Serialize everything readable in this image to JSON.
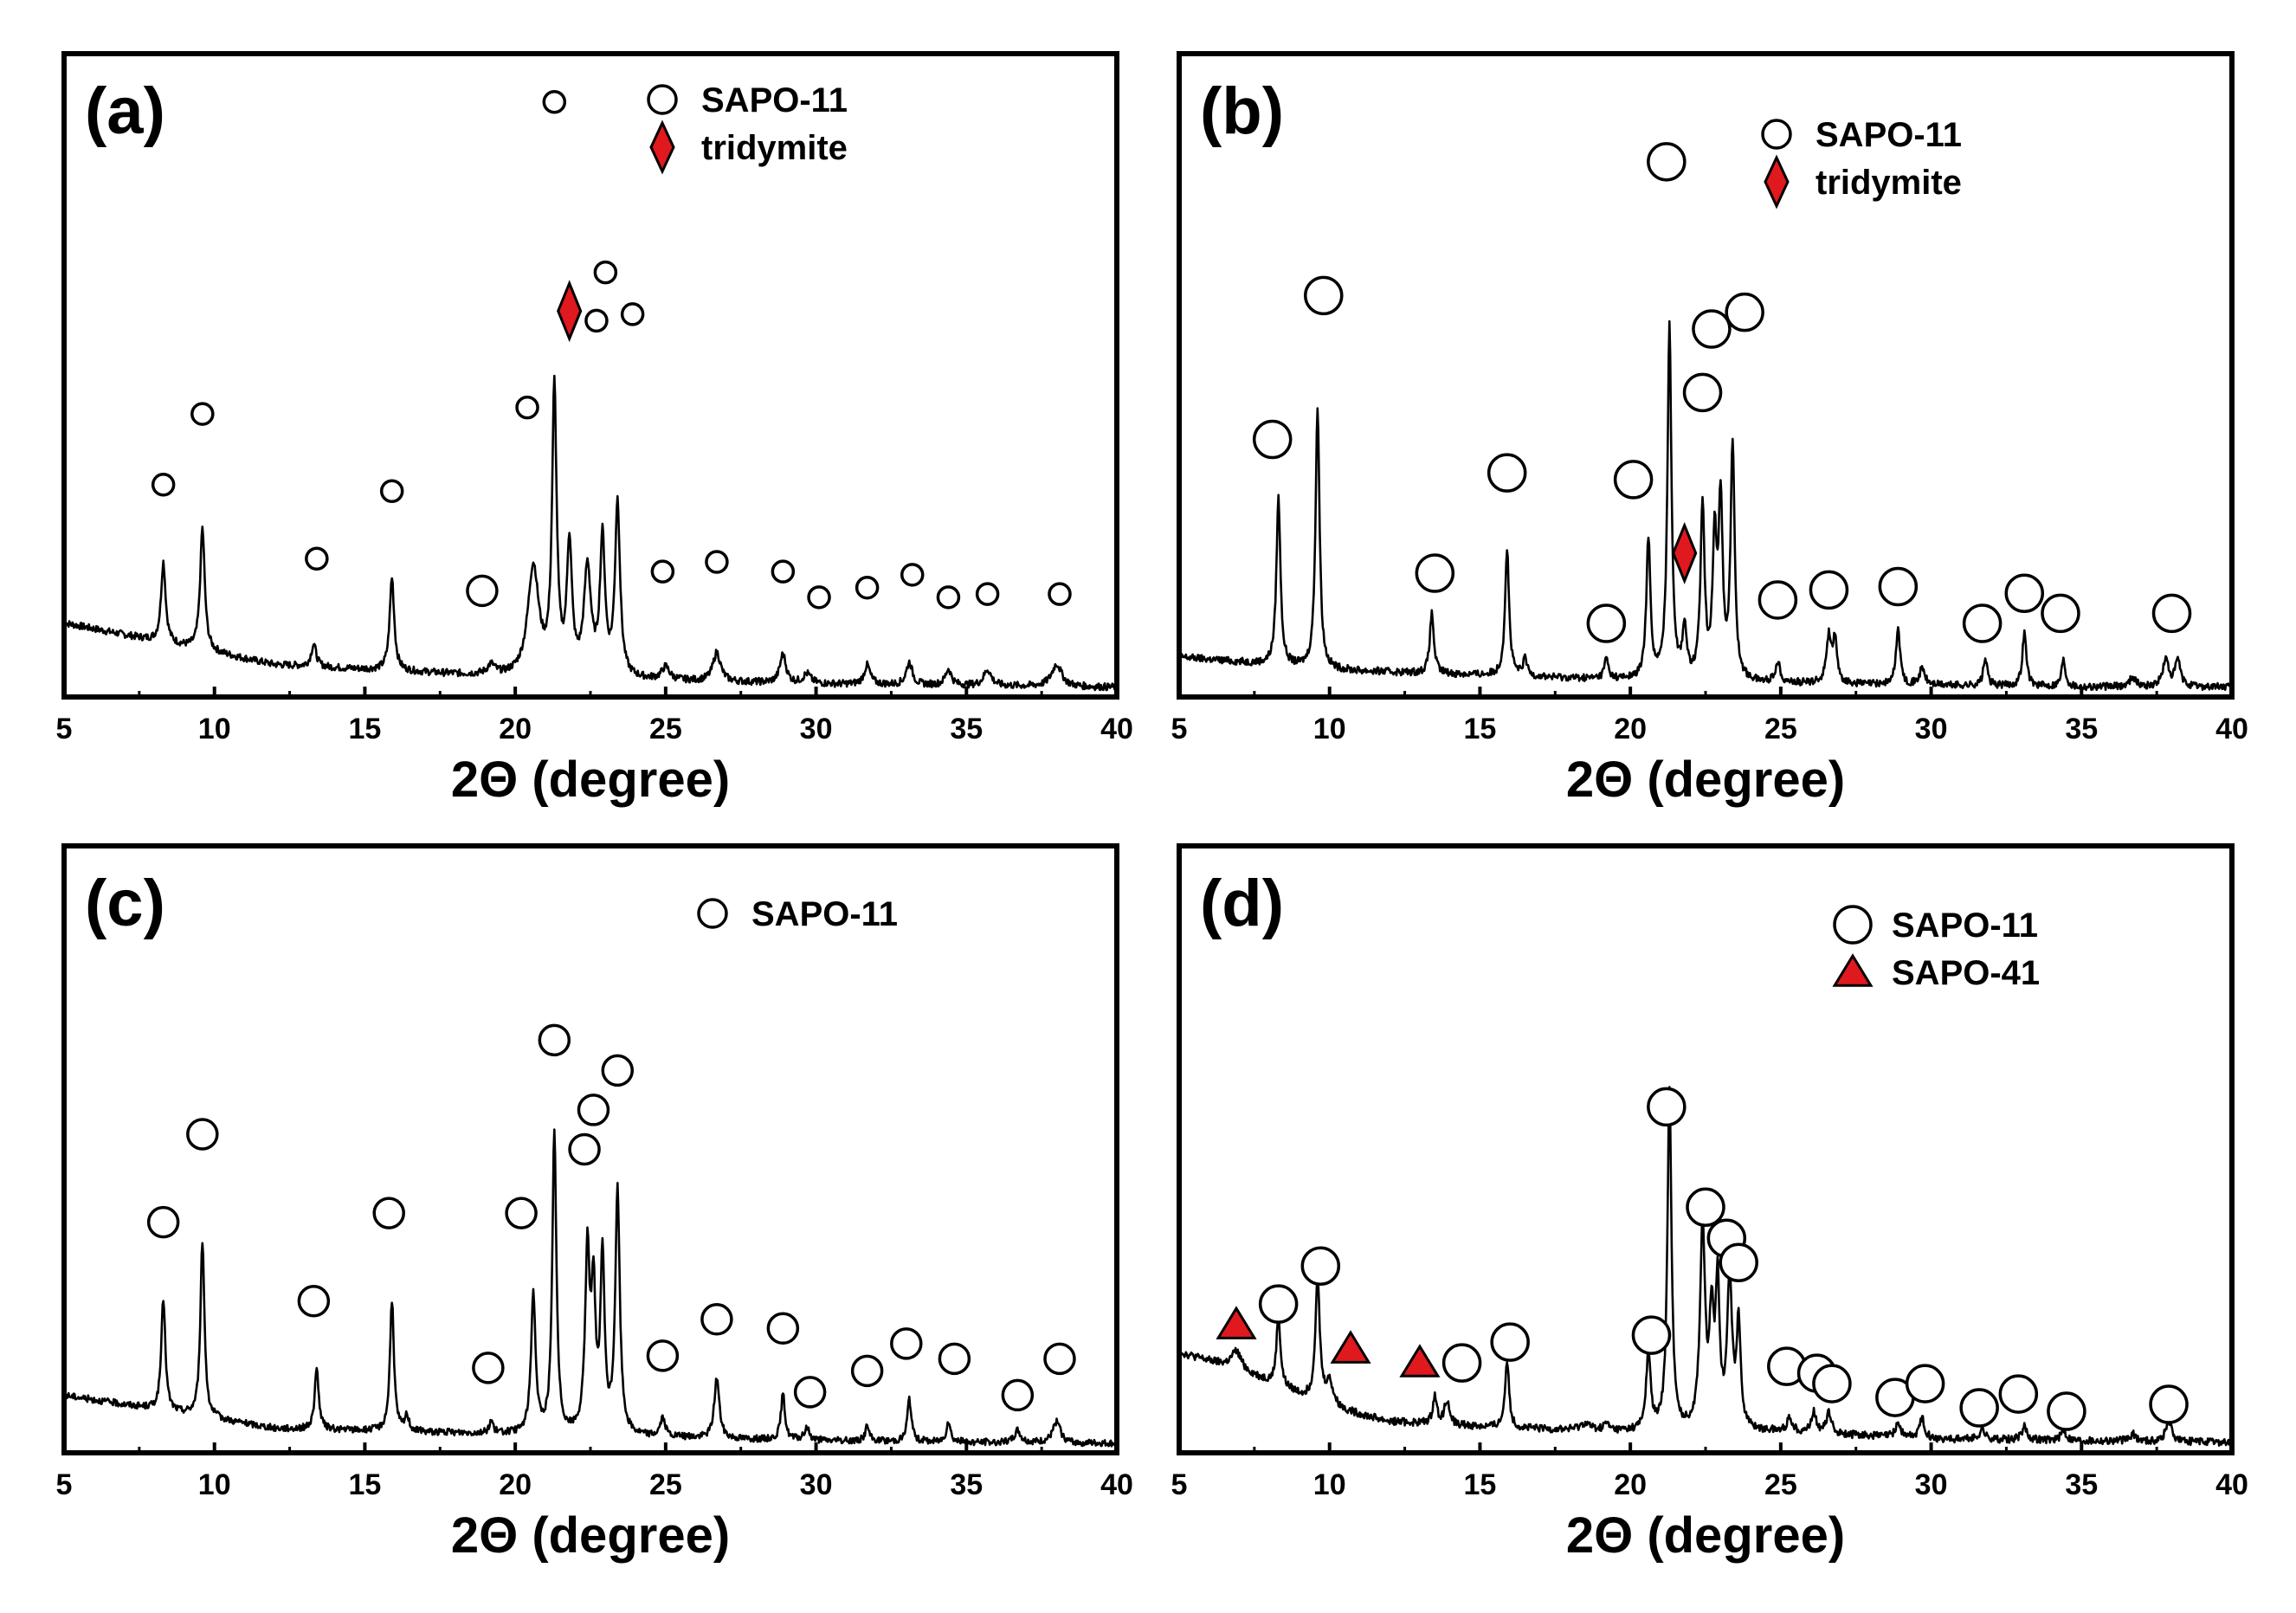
{
  "chart_data": [
    {
      "type": "line",
      "panel_label": "(a)",
      "xlabel": "2Θ (degree)",
      "ylabel": "",
      "xlim": [
        5,
        40
      ],
      "x_ticks": [
        "5",
        "10",
        "15",
        "20",
        "25",
        "30",
        "35",
        "40"
      ],
      "legend": [
        {
          "label": "SAPO-11",
          "marker": "circle"
        },
        {
          "label": "tridymite",
          "marker": "diamond",
          "color": "#e0191f"
        }
      ],
      "baseline": {
        "x": [
          5,
          12,
          20,
          25,
          30,
          35,
          40
        ],
        "y": [
          0.23,
          0.1,
          0.06,
          0.05,
          0.04,
          0.035,
          0.03
        ]
      },
      "peaks": [
        {
          "x": 8.3,
          "y": 0.25,
          "w": 0.09
        },
        {
          "x": 9.6,
          "y": 0.38,
          "w": 0.09
        },
        {
          "x": 13.3,
          "y": 0.07,
          "w": 0.1
        },
        {
          "x": 15.9,
          "y": 0.29,
          "w": 0.09
        },
        {
          "x": 19.2,
          "y": 0.03,
          "w": 0.15
        },
        {
          "x": 20.6,
          "y": 0.34,
          "w": 0.22
        },
        {
          "x": 21.3,
          "y": 0.88,
          "w": 0.09
        },
        {
          "x": 21.8,
          "y": 0.4,
          "w": 0.1
        },
        {
          "x": 22.4,
          "y": 0.33,
          "w": 0.14
        },
        {
          "x": 22.9,
          "y": 0.42,
          "w": 0.1
        },
        {
          "x": 23.4,
          "y": 0.54,
          "w": 0.1
        },
        {
          "x": 25.0,
          "y": 0.04,
          "w": 0.15
        },
        {
          "x": 26.7,
          "y": 0.09,
          "w": 0.15
        },
        {
          "x": 28.9,
          "y": 0.09,
          "w": 0.12
        },
        {
          "x": 29.7,
          "y": 0.03,
          "w": 0.15
        },
        {
          "x": 31.7,
          "y": 0.06,
          "w": 0.12
        },
        {
          "x": 33.1,
          "y": 0.07,
          "w": 0.12
        },
        {
          "x": 34.4,
          "y": 0.05,
          "w": 0.12
        },
        {
          "x": 35.7,
          "y": 0.05,
          "w": 0.15
        },
        {
          "x": 38.0,
          "y": 0.07,
          "w": 0.2
        }
      ],
      "markers": [
        {
          "type": "circle",
          "x": 8.3,
          "y": 0.66,
          "size": "s"
        },
        {
          "type": "circle",
          "x": 9.6,
          "y": 0.88,
          "size": "s"
        },
        {
          "type": "circle",
          "x": 13.4,
          "y": 0.43,
          "size": "s"
        },
        {
          "type": "circle",
          "x": 15.9,
          "y": 0.64,
          "size": "s"
        },
        {
          "type": "circle",
          "x": 18.9,
          "y": 0.33,
          "size": "m"
        },
        {
          "type": "circle",
          "x": 20.4,
          "y": 0.9,
          "size": "s"
        },
        {
          "type": "circle",
          "x": 21.3,
          "y": 1.85,
          "size": "s"
        },
        {
          "type": "diamond",
          "x": 21.8,
          "y": 1.2,
          "size": "m"
        },
        {
          "type": "circle",
          "x": 22.7,
          "y": 1.17,
          "size": "s"
        },
        {
          "type": "circle",
          "x": 23.0,
          "y": 1.32,
          "size": "s"
        },
        {
          "type": "circle",
          "x": 23.9,
          "y": 1.19,
          "size": "s"
        },
        {
          "type": "circle",
          "x": 24.9,
          "y": 0.39,
          "size": "s"
        },
        {
          "type": "circle",
          "x": 26.7,
          "y": 0.42,
          "size": "s"
        },
        {
          "type": "circle",
          "x": 28.9,
          "y": 0.39,
          "size": "s"
        },
        {
          "type": "circle",
          "x": 30.1,
          "y": 0.31,
          "size": "s"
        },
        {
          "type": "circle",
          "x": 31.7,
          "y": 0.34,
          "size": "s"
        },
        {
          "type": "circle",
          "x": 33.2,
          "y": 0.38,
          "size": "s"
        },
        {
          "type": "circle",
          "x": 34.4,
          "y": 0.31,
          "size": "s"
        },
        {
          "type": "circle",
          "x": 35.7,
          "y": 0.32,
          "size": "s"
        },
        {
          "type": "circle",
          "x": 38.1,
          "y": 0.32,
          "size": "s"
        }
      ]
    },
    {
      "type": "line",
      "panel_label": "(b)",
      "xlabel": "2Θ (degree)",
      "ylabel": "",
      "xlim": [
        5,
        40
      ],
      "x_ticks": [
        "5",
        "10",
        "15",
        "20",
        "25",
        "30",
        "35",
        "40"
      ],
      "legend": [
        {
          "label": "SAPO-11",
          "marker": "circle"
        },
        {
          "label": "tridymite",
          "marker": "diamond",
          "color": "#e0191f"
        }
      ],
      "baseline": {
        "x": [
          5,
          10,
          20,
          25,
          30,
          35,
          40
        ],
        "y": [
          0.12,
          0.08,
          0.05,
          0.04,
          0.035,
          0.03,
          0.03
        ]
      },
      "peaks": [
        {
          "x": 8.3,
          "y": 0.5,
          "w": 0.08
        },
        {
          "x": 9.6,
          "y": 0.78,
          "w": 0.08
        },
        {
          "x": 13.4,
          "y": 0.18,
          "w": 0.08
        },
        {
          "x": 15.9,
          "y": 0.38,
          "w": 0.08
        },
        {
          "x": 16.5,
          "y": 0.05,
          "w": 0.08
        },
        {
          "x": 19.2,
          "y": 0.06,
          "w": 0.08
        },
        {
          "x": 20.6,
          "y": 0.42,
          "w": 0.08
        },
        {
          "x": 21.3,
          "y": 1.05,
          "w": 0.08
        },
        {
          "x": 21.8,
          "y": 0.15,
          "w": 0.08
        },
        {
          "x": 22.4,
          "y": 0.52,
          "w": 0.08
        },
        {
          "x": 22.8,
          "y": 0.4,
          "w": 0.08
        },
        {
          "x": 23.0,
          "y": 0.52,
          "w": 0.08
        },
        {
          "x": 23.4,
          "y": 0.7,
          "w": 0.08
        },
        {
          "x": 24.9,
          "y": 0.06,
          "w": 0.1
        },
        {
          "x": 26.6,
          "y": 0.14,
          "w": 0.1
        },
        {
          "x": 26.8,
          "y": 0.12,
          "w": 0.08
        },
        {
          "x": 28.9,
          "y": 0.17,
          "w": 0.08
        },
        {
          "x": 29.7,
          "y": 0.05,
          "w": 0.1
        },
        {
          "x": 31.8,
          "y": 0.08,
          "w": 0.08
        },
        {
          "x": 33.1,
          "y": 0.16,
          "w": 0.08
        },
        {
          "x": 34.4,
          "y": 0.08,
          "w": 0.08
        },
        {
          "x": 36.7,
          "y": 0.03,
          "w": 0.12
        },
        {
          "x": 37.8,
          "y": 0.08,
          "w": 0.12
        },
        {
          "x": 38.2,
          "y": 0.08,
          "w": 0.1
        }
      ],
      "markers": [
        {
          "type": "circle",
          "x": 8.1,
          "y": 0.77,
          "size": "l"
        },
        {
          "type": "circle",
          "x": 9.8,
          "y": 1.2,
          "size": "l"
        },
        {
          "type": "circle",
          "x": 13.5,
          "y": 0.37,
          "size": "l"
        },
        {
          "type": "circle",
          "x": 15.9,
          "y": 0.67,
          "size": "l"
        },
        {
          "type": "circle",
          "x": 19.2,
          "y": 0.22,
          "size": "l"
        },
        {
          "type": "circle",
          "x": 20.1,
          "y": 0.65,
          "size": "l"
        },
        {
          "type": "circle",
          "x": 21.2,
          "y": 1.6,
          "size": "l"
        },
        {
          "type": "diamond",
          "x": 21.8,
          "y": 0.43,
          "size": "m"
        },
        {
          "type": "circle",
          "x": 22.4,
          "y": 0.91,
          "size": "l"
        },
        {
          "type": "circle",
          "x": 22.7,
          "y": 1.1,
          "size": "l"
        },
        {
          "type": "circle",
          "x": 23.8,
          "y": 1.15,
          "size": "l"
        },
        {
          "type": "circle",
          "x": 24.9,
          "y": 0.29,
          "size": "l"
        },
        {
          "type": "circle",
          "x": 26.6,
          "y": 0.32,
          "size": "l"
        },
        {
          "type": "circle",
          "x": 28.9,
          "y": 0.33,
          "size": "l"
        },
        {
          "type": "circle",
          "x": 31.7,
          "y": 0.22,
          "size": "l"
        },
        {
          "type": "circle",
          "x": 33.1,
          "y": 0.31,
          "size": "l"
        },
        {
          "type": "circle",
          "x": 34.3,
          "y": 0.25,
          "size": "l"
        },
        {
          "type": "circle",
          "x": 38.0,
          "y": 0.25,
          "size": "l"
        }
      ]
    },
    {
      "type": "line",
      "panel_label": "(c)",
      "xlabel": "2Θ (degree)",
      "ylabel": "",
      "xlim": [
        5,
        40
      ],
      "x_ticks": [
        "5",
        "10",
        "15",
        "20",
        "25",
        "30",
        "35",
        "40"
      ],
      "legend": [
        {
          "label": "SAPO-11",
          "marker": "circle"
        }
      ],
      "baseline": {
        "x": [
          5,
          12,
          20,
          25,
          30,
          35,
          40
        ],
        "y": [
          0.19,
          0.08,
          0.06,
          0.05,
          0.04,
          0.035,
          0.03
        ]
      },
      "peaks": [
        {
          "x": 8.3,
          "y": 0.37,
          "w": 0.08
        },
        {
          "x": 9.6,
          "y": 0.58,
          "w": 0.08
        },
        {
          "x": 13.4,
          "y": 0.2,
          "w": 0.08
        },
        {
          "x": 15.9,
          "y": 0.43,
          "w": 0.08
        },
        {
          "x": 16.4,
          "y": 0.05,
          "w": 0.08
        },
        {
          "x": 19.2,
          "y": 0.04,
          "w": 0.08
        },
        {
          "x": 20.6,
          "y": 0.46,
          "w": 0.09
        },
        {
          "x": 21.3,
          "y": 1.0,
          "w": 0.08
        },
        {
          "x": 22.4,
          "y": 0.59,
          "w": 0.09
        },
        {
          "x": 22.6,
          "y": 0.45,
          "w": 0.08
        },
        {
          "x": 22.9,
          "y": 0.58,
          "w": 0.08
        },
        {
          "x": 23.4,
          "y": 0.8,
          "w": 0.09
        },
        {
          "x": 24.9,
          "y": 0.06,
          "w": 0.1
        },
        {
          "x": 26.7,
          "y": 0.2,
          "w": 0.1
        },
        {
          "x": 28.9,
          "y": 0.15,
          "w": 0.08
        },
        {
          "x": 29.7,
          "y": 0.04,
          "w": 0.1
        },
        {
          "x": 31.7,
          "y": 0.05,
          "w": 0.08
        },
        {
          "x": 33.1,
          "y": 0.14,
          "w": 0.08
        },
        {
          "x": 34.4,
          "y": 0.07,
          "w": 0.08
        },
        {
          "x": 36.7,
          "y": 0.04,
          "w": 0.12
        },
        {
          "x": 38.0,
          "y": 0.07,
          "w": 0.15
        }
      ],
      "markers": [
        {
          "type": "circle",
          "x": 8.3,
          "y": 0.76,
          "size": "m"
        },
        {
          "type": "circle",
          "x": 9.6,
          "y": 1.05,
          "size": "m"
        },
        {
          "type": "circle",
          "x": 13.3,
          "y": 0.5,
          "size": "m"
        },
        {
          "type": "circle",
          "x": 15.8,
          "y": 0.79,
          "size": "m"
        },
        {
          "type": "circle",
          "x": 19.1,
          "y": 0.28,
          "size": "m"
        },
        {
          "type": "circle",
          "x": 20.2,
          "y": 0.79,
          "size": "m"
        },
        {
          "type": "circle",
          "x": 21.3,
          "y": 1.36,
          "size": "m"
        },
        {
          "type": "circle",
          "x": 22.3,
          "y": 1.0,
          "size": "m"
        },
        {
          "type": "circle",
          "x": 22.6,
          "y": 1.13,
          "size": "m"
        },
        {
          "type": "circle",
          "x": 23.4,
          "y": 1.26,
          "size": "m"
        },
        {
          "type": "circle",
          "x": 24.9,
          "y": 0.32,
          "size": "m"
        },
        {
          "type": "circle",
          "x": 26.7,
          "y": 0.44,
          "size": "m"
        },
        {
          "type": "circle",
          "x": 28.9,
          "y": 0.41,
          "size": "m"
        },
        {
          "type": "circle",
          "x": 29.8,
          "y": 0.2,
          "size": "m"
        },
        {
          "type": "circle",
          "x": 31.7,
          "y": 0.27,
          "size": "m"
        },
        {
          "type": "circle",
          "x": 33.0,
          "y": 0.36,
          "size": "m"
        },
        {
          "type": "circle",
          "x": 34.6,
          "y": 0.31,
          "size": "m"
        },
        {
          "type": "circle",
          "x": 36.7,
          "y": 0.19,
          "size": "m"
        },
        {
          "type": "circle",
          "x": 38.1,
          "y": 0.31,
          "size": "m"
        }
      ]
    },
    {
      "type": "line",
      "panel_label": "(d)",
      "xlabel": "2Θ (degree)",
      "ylabel": "",
      "xlim": [
        5,
        40
      ],
      "x_ticks": [
        "5",
        "10",
        "15",
        "20",
        "25",
        "30",
        "35",
        "40"
      ],
      "legend": [
        {
          "label": "SAPO-11",
          "marker": "circle"
        },
        {
          "label": "SAPO-41",
          "marker": "triangle",
          "color": "#e0191f"
        }
      ],
      "baseline": {
        "x": [
          5,
          7,
          10,
          12,
          16,
          20,
          25,
          30,
          35,
          40
        ],
        "y": [
          0.29,
          0.24,
          0.13,
          0.09,
          0.07,
          0.06,
          0.06,
          0.04,
          0.035,
          0.03
        ]
      },
      "peaks": [
        {
          "x": 6.9,
          "y": 0.05,
          "w": 0.2
        },
        {
          "x": 8.3,
          "y": 0.2,
          "w": 0.08
        },
        {
          "x": 9.6,
          "y": 0.35,
          "w": 0.09
        },
        {
          "x": 10.0,
          "y": 0.07,
          "w": 0.15
        },
        {
          "x": 13.5,
          "y": 0.08,
          "w": 0.08
        },
        {
          "x": 13.9,
          "y": 0.07,
          "w": 0.1
        },
        {
          "x": 15.9,
          "y": 0.2,
          "w": 0.08
        },
        {
          "x": 18.5,
          "y": 0.02,
          "w": 0.2
        },
        {
          "x": 19.2,
          "y": 0.02,
          "w": 0.1
        },
        {
          "x": 20.6,
          "y": 0.22,
          "w": 0.09
        },
        {
          "x": 21.3,
          "y": 0.99,
          "w": 0.08
        },
        {
          "x": 22.4,
          "y": 0.58,
          "w": 0.1
        },
        {
          "x": 22.7,
          "y": 0.3,
          "w": 0.08
        },
        {
          "x": 22.9,
          "y": 0.4,
          "w": 0.08
        },
        {
          "x": 23.3,
          "y": 0.43,
          "w": 0.1
        },
        {
          "x": 23.6,
          "y": 0.3,
          "w": 0.08
        },
        {
          "x": 25.3,
          "y": 0.04,
          "w": 0.1
        },
        {
          "x": 26.1,
          "y": 0.06,
          "w": 0.1
        },
        {
          "x": 26.6,
          "y": 0.06,
          "w": 0.1
        },
        {
          "x": 28.9,
          "y": 0.04,
          "w": 0.1
        },
        {
          "x": 29.7,
          "y": 0.06,
          "w": 0.1
        },
        {
          "x": 31.7,
          "y": 0.03,
          "w": 0.1
        },
        {
          "x": 33.1,
          "y": 0.04,
          "w": 0.1
        },
        {
          "x": 34.4,
          "y": 0.03,
          "w": 0.1
        },
        {
          "x": 36.7,
          "y": 0.02,
          "w": 0.12
        },
        {
          "x": 37.9,
          "y": 0.06,
          "w": 0.12
        }
      ],
      "markers": [
        {
          "type": "triangle",
          "x": 6.9,
          "y": 0.37,
          "size": "m"
        },
        {
          "type": "circle",
          "x": 8.3,
          "y": 0.43,
          "size": "l"
        },
        {
          "type": "circle",
          "x": 9.7,
          "y": 0.54,
          "size": "l"
        },
        {
          "type": "triangle",
          "x": 10.7,
          "y": 0.3,
          "size": "m"
        },
        {
          "type": "triangle",
          "x": 13.0,
          "y": 0.26,
          "size": "m"
        },
        {
          "type": "circle",
          "x": 14.4,
          "y": 0.26,
          "size": "l"
        },
        {
          "type": "circle",
          "x": 16.0,
          "y": 0.32,
          "size": "l"
        },
        {
          "type": "circle",
          "x": 20.7,
          "y": 0.34,
          "size": "l"
        },
        {
          "type": "circle",
          "x": 21.2,
          "y": 1.0,
          "size": "l"
        },
        {
          "type": "circle",
          "x": 22.5,
          "y": 0.71,
          "size": "l"
        },
        {
          "type": "circle",
          "x": 23.2,
          "y": 0.62,
          "size": "l"
        },
        {
          "type": "circle",
          "x": 23.6,
          "y": 0.55,
          "size": "l"
        },
        {
          "type": "circle",
          "x": 25.2,
          "y": 0.25,
          "size": "l"
        },
        {
          "type": "circle",
          "x": 26.2,
          "y": 0.23,
          "size": "l"
        },
        {
          "type": "circle",
          "x": 26.7,
          "y": 0.2,
          "size": "l"
        },
        {
          "type": "circle",
          "x": 28.8,
          "y": 0.16,
          "size": "l"
        },
        {
          "type": "circle",
          "x": 29.8,
          "y": 0.2,
          "size": "l"
        },
        {
          "type": "circle",
          "x": 31.6,
          "y": 0.13,
          "size": "l"
        },
        {
          "type": "circle",
          "x": 32.9,
          "y": 0.17,
          "size": "l"
        },
        {
          "type": "circle",
          "x": 34.5,
          "y": 0.12,
          "size": "l"
        },
        {
          "type": "circle",
          "x": 37.9,
          "y": 0.14,
          "size": "l"
        }
      ]
    }
  ]
}
